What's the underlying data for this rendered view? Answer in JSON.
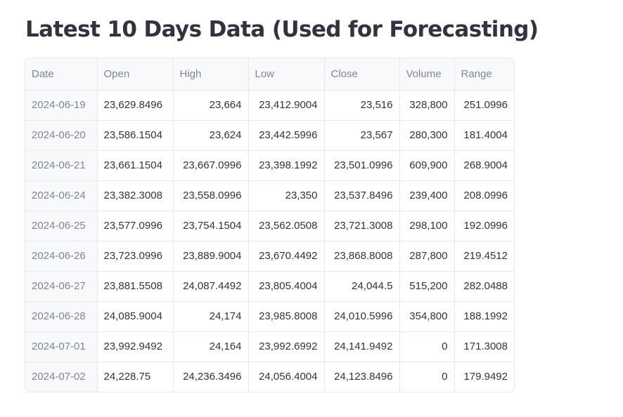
{
  "page": {
    "title": "Latest 10 Days Data (Used for Forecasting)"
  },
  "table": {
    "columns": [
      "Date",
      "Open",
      "High",
      "Low",
      "Close",
      "Volume",
      "Range"
    ],
    "rows": [
      [
        "2024-06-19",
        "23,629.8496",
        "23,664",
        "23,412.9004",
        "23,516",
        "328,800",
        "251.0996"
      ],
      [
        "2024-06-20",
        "23,586.1504",
        "23,624",
        "23,442.5996",
        "23,567",
        "280,300",
        "181.4004"
      ],
      [
        "2024-06-21",
        "23,661.1504",
        "23,667.0996",
        "23,398.1992",
        "23,501.0996",
        "609,900",
        "268.9004"
      ],
      [
        "2024-06-24",
        "23,382.3008",
        "23,558.0996",
        "23,350",
        "23,537.8496",
        "239,400",
        "208.0996"
      ],
      [
        "2024-06-25",
        "23,577.0996",
        "23,754.1504",
        "23,562.0508",
        "23,721.3008",
        "298,100",
        "192.0996"
      ],
      [
        "2024-06-26",
        "23,723.0996",
        "23,889.9004",
        "23,670.4492",
        "23,868.8008",
        "287,800",
        "219.4512"
      ],
      [
        "2024-06-27",
        "23,881.5508",
        "24,087.4492",
        "23,805.4004",
        "24,044.5",
        "515,200",
        "282.0488"
      ],
      [
        "2024-06-28",
        "24,085.9004",
        "24,174",
        "23,985.8008",
        "24,010.5996",
        "354,800",
        "188.1992"
      ],
      [
        "2024-07-01",
        "23,992.9492",
        "24,164",
        "23,992.6992",
        "24,141.9492",
        "0",
        "171.3008"
      ],
      [
        "2024-07-02",
        "24,228.75",
        "24,236.3496",
        "24,056.4004",
        "24,123.8496",
        "0",
        "179.9492"
      ]
    ]
  }
}
